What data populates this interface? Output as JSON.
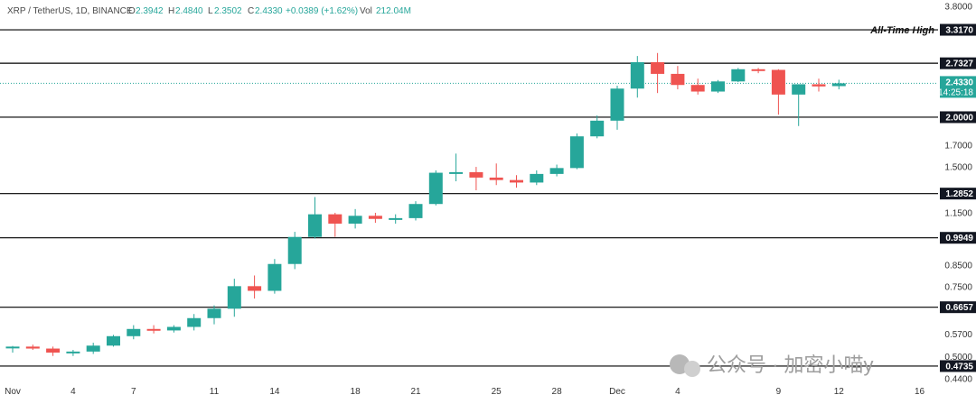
{
  "header": {
    "symbol": "XRP / TetherUS, 1D, BINANCE",
    "open_label": "O",
    "open": "2.3942",
    "high_label": "H",
    "high": "2.4840",
    "low_label": "L",
    "low": "2.3502",
    "close_label": "C",
    "close": "2.4330",
    "change": "+0.0389 (+1.62%)",
    "vol_label": "Vol",
    "vol": "212.04M"
  },
  "watermark": "公众号 · 加密小喵y",
  "colors": {
    "up": "#26a69a",
    "down": "#ef5350",
    "level_line": "#000000",
    "price_line": "#26a69a"
  },
  "chart_data": {
    "type": "candlestick",
    "y_scale": "log",
    "ylim": [
      0.44,
      3.8
    ],
    "grid": false,
    "x_tick_labels": [
      {
        "label": "Nov",
        "day": "Nov 1"
      },
      {
        "label": "4",
        "day": "Nov 4"
      },
      {
        "label": "7",
        "day": "Nov 7"
      },
      {
        "label": "11",
        "day": "Nov 11"
      },
      {
        "label": "14",
        "day": "Nov 14"
      },
      {
        "label": "18",
        "day": "Nov 18"
      },
      {
        "label": "21",
        "day": "Nov 21"
      },
      {
        "label": "25",
        "day": "Nov 25"
      },
      {
        "label": "28",
        "day": "Nov 28"
      },
      {
        "label": "Dec",
        "day": "Dec 1"
      },
      {
        "label": "4",
        "day": "Dec 4"
      },
      {
        "label": "9",
        "day": "Dec 9"
      },
      {
        "label": "12",
        "day": "Dec 12"
      },
      {
        "label": "16",
        "day": "Dec 16"
      }
    ],
    "y_tick_labels": [
      "3.8000",
      "3.3170",
      "2.7327",
      "2.4330",
      "2.0000",
      "1.7000",
      "1.5000",
      "1.2852",
      "1.1500",
      "0.9949",
      "0.8500",
      "0.7500",
      "0.6657",
      "0.5700",
      "0.5000",
      "0.4735",
      "0.4400"
    ],
    "y_ticks": [
      {
        "label": "3.8000",
        "value": 3.8
      },
      {
        "label": "1.7000",
        "value": 1.7
      },
      {
        "label": "1.5000",
        "value": 1.5
      },
      {
        "label": "1.1500",
        "value": 1.15
      },
      {
        "label": "0.8500",
        "value": 0.85
      },
      {
        "label": "0.7500",
        "value": 0.75
      },
      {
        "label": "0.5700",
        "value": 0.57
      },
      {
        "label": "0.5000",
        "value": 0.5
      },
      {
        "label": "0.4400",
        "value": 0.44
      }
    ],
    "levels": [
      {
        "label": "3.3170",
        "value": 3.317,
        "annotation": "All-Time High"
      },
      {
        "label": "2.7327",
        "value": 2.7327
      },
      {
        "label": "2.0000",
        "value": 2.0
      },
      {
        "label": "1.2852",
        "value": 1.2852
      },
      {
        "label": "0.9949",
        "value": 0.9949
      },
      {
        "label": "0.6657",
        "value": 0.6657
      },
      {
        "label": "0.4735",
        "value": 0.4735
      }
    ],
    "last_price": {
      "label": "2.4330",
      "value": 2.433,
      "countdown": "14:25:18"
    },
    "candles": [
      {
        "date": "Nov 1",
        "o": 0.525,
        "h": 0.532,
        "l": 0.512,
        "c": 0.53
      },
      {
        "date": "Nov 2",
        "o": 0.53,
        "h": 0.536,
        "l": 0.52,
        "c": 0.524
      },
      {
        "date": "Nov 3",
        "o": 0.524,
        "h": 0.53,
        "l": 0.502,
        "c": 0.512
      },
      {
        "date": "Nov 4",
        "o": 0.512,
        "h": 0.52,
        "l": 0.502,
        "c": 0.515
      },
      {
        "date": "Nov 5",
        "o": 0.515,
        "h": 0.542,
        "l": 0.508,
        "c": 0.533
      },
      {
        "date": "Nov 6",
        "o": 0.533,
        "h": 0.567,
        "l": 0.53,
        "c": 0.563
      },
      {
        "date": "Nov 7",
        "o": 0.563,
        "h": 0.6,
        "l": 0.553,
        "c": 0.587
      },
      {
        "date": "Nov 8",
        "o": 0.587,
        "h": 0.6,
        "l": 0.572,
        "c": 0.582
      },
      {
        "date": "Nov 9",
        "o": 0.582,
        "h": 0.6,
        "l": 0.575,
        "c": 0.594
      },
      {
        "date": "Nov 10",
        "o": 0.594,
        "h": 0.64,
        "l": 0.582,
        "c": 0.625
      },
      {
        "date": "Nov 11",
        "o": 0.625,
        "h": 0.673,
        "l": 0.603,
        "c": 0.66
      },
      {
        "date": "Nov 12",
        "o": 0.66,
        "h": 0.785,
        "l": 0.63,
        "c": 0.752
      },
      {
        "date": "Nov 13",
        "o": 0.752,
        "h": 0.8,
        "l": 0.7,
        "c": 0.732
      },
      {
        "date": "Nov 14",
        "o": 0.732,
        "h": 0.88,
        "l": 0.72,
        "c": 0.855
      },
      {
        "date": "Nov 15",
        "o": 0.855,
        "h": 1.03,
        "l": 0.83,
        "c": 1.0
      },
      {
        "date": "Nov 16",
        "o": 1.0,
        "h": 1.26,
        "l": 0.99,
        "c": 1.14
      },
      {
        "date": "Nov 17",
        "o": 1.14,
        "h": 1.15,
        "l": 1.0,
        "c": 1.08
      },
      {
        "date": "Nov 18",
        "o": 1.08,
        "h": 1.175,
        "l": 1.05,
        "c": 1.13
      },
      {
        "date": "Nov 19",
        "o": 1.13,
        "h": 1.15,
        "l": 1.085,
        "c": 1.11
      },
      {
        "date": "Nov 20",
        "o": 1.11,
        "h": 1.14,
        "l": 1.08,
        "c": 1.115
      },
      {
        "date": "Nov 21",
        "o": 1.115,
        "h": 1.23,
        "l": 1.1,
        "c": 1.21
      },
      {
        "date": "Nov 22",
        "o": 1.21,
        "h": 1.47,
        "l": 1.2,
        "c": 1.45
      },
      {
        "date": "Nov 23",
        "o": 1.45,
        "h": 1.62,
        "l": 1.38,
        "c": 1.455
      },
      {
        "date": "Nov 24",
        "o": 1.455,
        "h": 1.5,
        "l": 1.31,
        "c": 1.41
      },
      {
        "date": "Nov 25",
        "o": 1.41,
        "h": 1.53,
        "l": 1.35,
        "c": 1.39
      },
      {
        "date": "Nov 26",
        "o": 1.39,
        "h": 1.43,
        "l": 1.33,
        "c": 1.37
      },
      {
        "date": "Nov 27",
        "o": 1.37,
        "h": 1.47,
        "l": 1.35,
        "c": 1.44
      },
      {
        "date": "Nov 28",
        "o": 1.44,
        "h": 1.52,
        "l": 1.42,
        "c": 1.49
      },
      {
        "date": "Nov 29",
        "o": 1.49,
        "h": 1.82,
        "l": 1.48,
        "c": 1.79
      },
      {
        "date": "Nov 30",
        "o": 1.79,
        "h": 2.02,
        "l": 1.77,
        "c": 1.96
      },
      {
        "date": "Dec 1",
        "o": 1.96,
        "h": 2.4,
        "l": 1.86,
        "c": 2.36
      },
      {
        "date": "Dec 2",
        "o": 2.36,
        "h": 2.85,
        "l": 2.24,
        "c": 2.75
      },
      {
        "date": "Dec 3",
        "o": 2.75,
        "h": 2.9,
        "l": 2.3,
        "c": 2.57
      },
      {
        "date": "Dec 4",
        "o": 2.57,
        "h": 2.69,
        "l": 2.35,
        "c": 2.41
      },
      {
        "date": "Dec 5",
        "o": 2.41,
        "h": 2.5,
        "l": 2.28,
        "c": 2.32
      },
      {
        "date": "Dec 6",
        "o": 2.32,
        "h": 2.48,
        "l": 2.3,
        "c": 2.46
      },
      {
        "date": "Dec 7",
        "o": 2.46,
        "h": 2.66,
        "l": 2.45,
        "c": 2.64
      },
      {
        "date": "Dec 8",
        "o": 2.64,
        "h": 2.66,
        "l": 2.58,
        "c": 2.63
      },
      {
        "date": "Dec 9",
        "o": 2.63,
        "h": 2.64,
        "l": 2.03,
        "c": 2.28
      },
      {
        "date": "Dec 10",
        "o": 2.28,
        "h": 2.42,
        "l": 1.9,
        "c": 2.42
      },
      {
        "date": "Dec 11",
        "o": 2.42,
        "h": 2.5,
        "l": 2.32,
        "c": 2.39
      },
      {
        "date": "Dec 12",
        "o": 2.394,
        "h": 2.484,
        "l": 2.35,
        "c": 2.433
      }
    ]
  }
}
